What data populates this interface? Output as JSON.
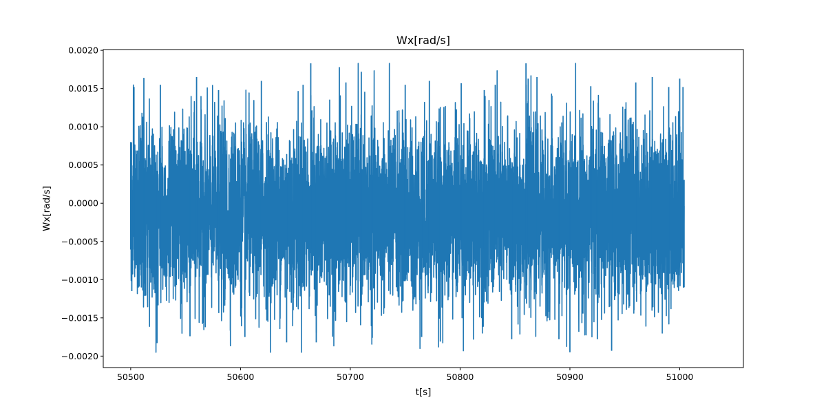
{
  "chart_data": {
    "type": "line",
    "title": "Wx[rad/s]",
    "xlabel": "t[s]",
    "ylabel": "Wx[rad/s]",
    "xlim": [
      50475,
      51058
    ],
    "ylim": [
      -0.00215,
      0.00201
    ],
    "x_range": [
      50500,
      51004
    ],
    "xticks": [
      50500,
      50600,
      50700,
      50800,
      50900,
      51000
    ],
    "xtick_labels": [
      "50500",
      "50600",
      "50700",
      "50800",
      "50900",
      "51000"
    ],
    "yticks": [
      -0.002,
      -0.0015,
      -0.001,
      -0.0005,
      0.0,
      0.0005,
      0.001,
      0.0015,
      0.002
    ],
    "ytick_labels": [
      "−0.0020",
      "−0.0015",
      "−0.0010",
      "−0.0005",
      "0.0000",
      "0.0005",
      "0.0010",
      "0.0015",
      "0.0020"
    ],
    "grid": false,
    "legend": "none",
    "series": [
      {
        "color": "#1f77b4",
        "stats": {
          "mean": -0.00015,
          "std": 0.00057,
          "min": -0.00195,
          "max": 0.00183
        },
        "x": [
          50500,
          50501,
          50503,
          50512,
          50524,
          50527,
          50554,
          50560,
          50580,
          50604,
          50619,
          50642,
          50657,
          50664,
          50669,
          50690,
          50696,
          50710,
          50720,
          50750,
          50765,
          50772,
          50782,
          50801,
          50822,
          50832,
          50847,
          50860,
          50862,
          50870,
          50890,
          50900,
          50919,
          50925,
          50938,
          50960,
          50975,
          50990,
          51000,
          51003,
          51004
        ],
        "y": [
          0.0008,
          -0.00115,
          0.00152,
          0.00164,
          -0.00183,
          0.00155,
          -0.00174,
          0.00165,
          0.00148,
          -0.00175,
          0.0016,
          -0.00182,
          0.00155,
          0.00183,
          -0.00182,
          0.00178,
          0.00158,
          0.00172,
          -0.00176,
          0.00155,
          -0.00175,
          0.0016,
          -0.00181,
          0.00157,
          0.00148,
          0.00155,
          -0.00178,
          0.00183,
          0.00163,
          0.00165,
          -0.00178,
          -0.00195,
          0.00153,
          -0.00178,
          -0.00193,
          0.00158,
          0.00165,
          0.00152,
          0.00163,
          0.00152,
          -0.0011
        ]
      }
    ]
  }
}
